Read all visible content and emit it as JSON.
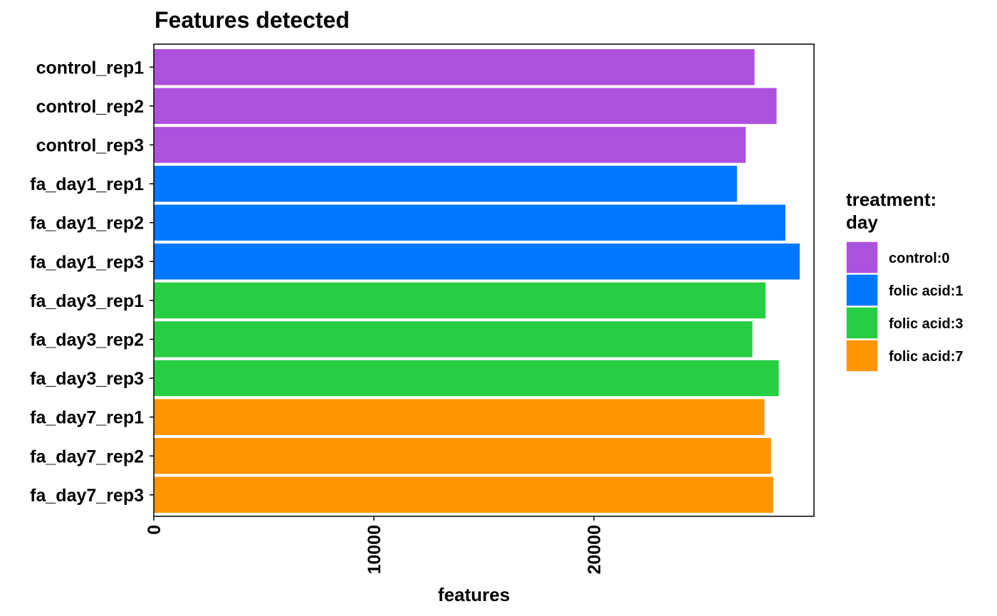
{
  "chart_data": {
    "type": "bar",
    "orientation": "horizontal",
    "title": "Features detected",
    "xlabel": "features",
    "ylabel": "",
    "xlim": [
      0,
      30000
    ],
    "x_ticks": [
      0,
      10000,
      20000
    ],
    "grid": false,
    "legend": {
      "title_lines": [
        "treatment:",
        "day"
      ],
      "placement": "right",
      "entries": [
        {
          "group": "control:0",
          "color": "#AD51DF"
        },
        {
          "group": "folic acid:1",
          "color": "#0077FF"
        },
        {
          "group": "folic acid:3",
          "color": "#27CE44"
        },
        {
          "group": "folic acid:7",
          "color": "#FF9500"
        }
      ]
    },
    "categories": [
      "control_rep1",
      "control_rep2",
      "control_rep3",
      "fa_day1_rep1",
      "fa_day1_rep2",
      "fa_day1_rep3",
      "fa_day3_rep1",
      "fa_day3_rep2",
      "fa_day3_rep3",
      "fa_day7_rep1",
      "fa_day7_rep2",
      "fa_day7_rep3"
    ],
    "values": [
      27300,
      28300,
      26900,
      26500,
      28700,
      29350,
      27800,
      27200,
      28400,
      27750,
      28050,
      28150
    ],
    "groups": [
      "control:0",
      "control:0",
      "control:0",
      "folic acid:1",
      "folic acid:1",
      "folic acid:1",
      "folic acid:3",
      "folic acid:3",
      "folic acid:3",
      "folic acid:7",
      "folic acid:7",
      "folic acid:7"
    ]
  }
}
